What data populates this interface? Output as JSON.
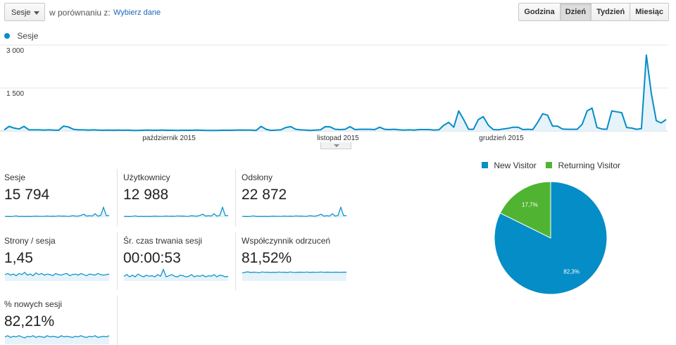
{
  "toolbar": {
    "metric_select": "Sesje",
    "compare_label": "w porównaniu z:",
    "compare_link": "Wybierz dane",
    "periods": [
      {
        "label": "Godzina",
        "active": false
      },
      {
        "label": "Dzień",
        "active": true
      },
      {
        "label": "Tydzień",
        "active": false
      },
      {
        "label": "Miesiąc",
        "active": false
      }
    ]
  },
  "colors": {
    "series": "#058dc7",
    "series_fill": "#e6f3fa",
    "new_visitor": "#058dc7",
    "returning_visitor": "#50b432",
    "grid": "#e6e6e6"
  },
  "chart_data": [
    {
      "type": "area",
      "legend": [
        "Sesje"
      ],
      "y_ticks": [
        "3 000",
        "1 500"
      ],
      "x_labels": [
        "październik 2015",
        "listopad 2015",
        "grudzień 2015"
      ],
      "ylim": [
        0,
        3000
      ],
      "grid": true,
      "series": [
        {
          "name": "Sesje",
          "values": [
            40,
            160,
            100,
            70,
            160,
            40,
            40,
            40,
            30,
            40,
            30,
            25,
            170,
            140,
            60,
            40,
            40,
            30,
            40,
            30,
            25,
            30,
            25,
            30,
            25,
            30,
            20,
            20,
            25,
            30,
            25,
            25,
            30,
            25,
            25,
            20,
            25,
            25,
            25,
            30,
            25,
            20,
            20,
            20,
            25,
            25,
            25,
            30,
            35,
            30,
            30,
            20,
            160,
            60,
            20,
            30,
            40,
            120,
            150,
            60,
            40,
            30,
            20,
            30,
            40,
            150,
            140,
            60,
            50,
            60,
            150,
            50,
            60,
            60,
            60,
            50,
            130,
            60,
            50,
            60,
            40,
            30,
            40,
            30,
            50,
            50,
            50,
            30,
            40,
            200,
            300,
            130,
            700,
            400,
            60,
            60,
            400,
            500,
            200,
            50,
            40,
            70,
            90,
            130,
            130,
            50,
            60,
            50,
            300,
            600,
            550,
            170,
            170,
            70,
            60,
            60,
            60,
            230,
            700,
            800,
            120,
            70,
            60,
            700,
            670,
            640,
            120,
            100,
            60,
            80,
            2650,
            1300,
            360,
            280,
            400
          ]
        }
      ]
    },
    {
      "type": "pie",
      "legend_position": "top",
      "categories": [
        "New Visitor",
        "Returning Visitor"
      ],
      "values": [
        82.3,
        17.7
      ],
      "labels": [
        "82,3%",
        "17,7%"
      ]
    }
  ],
  "scorecards": [
    {
      "label": "Sesje",
      "value": "15 794",
      "spark": [
        0.05,
        0.04,
        0.04,
        0.05,
        0.08,
        0.04,
        0.05,
        0.04,
        0.05,
        0.04,
        0.05,
        0.06,
        0.05,
        0.05,
        0.05,
        0.07,
        0.05,
        0.06,
        0.05,
        0.08,
        0.06,
        0.07,
        0.05,
        0.05,
        0.1,
        0.07,
        0.06,
        0.13,
        0.24,
        0.06,
        0.1,
        0.07,
        0.28,
        0.06,
        0.12,
        0.85,
        0.1,
        0.12
      ]
    },
    {
      "label": "Użytkownicy",
      "value": "12 988",
      "spark": [
        0.05,
        0.04,
        0.04,
        0.05,
        0.08,
        0.04,
        0.05,
        0.04,
        0.05,
        0.04,
        0.05,
        0.06,
        0.05,
        0.05,
        0.05,
        0.07,
        0.05,
        0.06,
        0.05,
        0.08,
        0.06,
        0.07,
        0.05,
        0.05,
        0.1,
        0.07,
        0.06,
        0.13,
        0.24,
        0.06,
        0.1,
        0.07,
        0.28,
        0.06,
        0.12,
        0.85,
        0.1,
        0.12
      ]
    },
    {
      "label": "Odsłony",
      "value": "22 872",
      "spark": [
        0.05,
        0.04,
        0.04,
        0.05,
        0.08,
        0.04,
        0.05,
        0.04,
        0.05,
        0.04,
        0.05,
        0.06,
        0.05,
        0.05,
        0.05,
        0.07,
        0.05,
        0.06,
        0.05,
        0.08,
        0.06,
        0.07,
        0.05,
        0.05,
        0.1,
        0.07,
        0.06,
        0.13,
        0.24,
        0.06,
        0.1,
        0.07,
        0.28,
        0.06,
        0.12,
        0.85,
        0.1,
        0.12
      ]
    },
    {
      "label": "Strony / sesja",
      "value": "1,45",
      "spark": [
        0.5,
        0.6,
        0.45,
        0.55,
        0.4,
        0.6,
        0.5,
        0.7,
        0.45,
        0.55,
        0.4,
        0.65,
        0.5,
        0.6,
        0.45,
        0.55,
        0.5,
        0.4,
        0.6,
        0.5,
        0.45,
        0.55,
        0.6,
        0.4,
        0.5,
        0.55,
        0.45,
        0.6,
        0.5,
        0.4,
        0.55,
        0.5,
        0.45,
        0.6,
        0.5,
        0.45,
        0.5,
        0.55
      ]
    },
    {
      "label": "Śr. czas trwania sesji",
      "value": "00:00:53",
      "spark": [
        0.35,
        0.5,
        0.3,
        0.45,
        0.3,
        0.55,
        0.4,
        0.3,
        0.45,
        0.35,
        0.4,
        0.3,
        0.5,
        0.35,
        0.95,
        0.3,
        0.4,
        0.5,
        0.35,
        0.3,
        0.45,
        0.4,
        0.3,
        0.35,
        0.5,
        0.3,
        0.4,
        0.35,
        0.45,
        0.3,
        0.4,
        0.35,
        0.5,
        0.3,
        0.45,
        0.4,
        0.3,
        0.35
      ]
    },
    {
      "label": "Współczynnik odrzuceń",
      "value": "81,52%",
      "spark": [
        0.65,
        0.7,
        0.75,
        0.68,
        0.72,
        0.7,
        0.66,
        0.74,
        0.7,
        0.72,
        0.68,
        0.71,
        0.69,
        0.73,
        0.7,
        0.72,
        0.68,
        0.74,
        0.7,
        0.69,
        0.72,
        0.71,
        0.7,
        0.73,
        0.69,
        0.72,
        0.7,
        0.71,
        0.73,
        0.7,
        0.72,
        0.71,
        0.7,
        0.72,
        0.71,
        0.7,
        0.72,
        0.71
      ]
    },
    {
      "label": "% nowych sesji",
      "value": "82,21%",
      "spark": [
        0.6,
        0.7,
        0.55,
        0.65,
        0.6,
        0.7,
        0.6,
        0.5,
        0.65,
        0.6,
        0.7,
        0.55,
        0.65,
        0.6,
        0.55,
        0.7,
        0.6,
        0.65,
        0.6,
        0.55,
        0.7,
        0.6,
        0.65,
        0.6,
        0.55,
        0.65,
        0.6,
        0.7,
        0.6,
        0.55,
        0.65,
        0.6,
        0.7,
        0.55,
        0.6,
        0.65,
        0.6,
        0.7
      ]
    }
  ]
}
